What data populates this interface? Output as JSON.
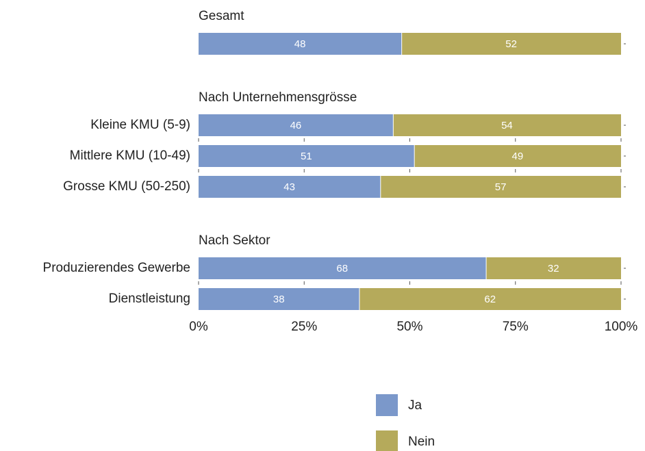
{
  "chart_data": {
    "type": "bar",
    "orientation": "horizontal",
    "stacked": true,
    "groups": [
      {
        "title": "Gesamt",
        "categories": [
          null
        ]
      },
      {
        "title": "Nach Unternehmensgrösse",
        "categories": [
          "Kleine KMU (5-9)",
          "Mittlere KMU (10-49)",
          "Grosse KMU (50-250)"
        ]
      },
      {
        "title": "Nach Sektor",
        "categories": [
          "Produzierendes Gewerbe",
          "Dienstleistung"
        ]
      }
    ],
    "series": [
      {
        "name": "Ja",
        "color": "#7b98ca",
        "values": [
          48,
          46,
          51,
          43,
          68,
          38
        ]
      },
      {
        "name": "Nein",
        "color": "#b5aa5b",
        "values": [
          52,
          54,
          49,
          57,
          32,
          62
        ]
      }
    ],
    "xlim": [
      0,
      100
    ],
    "xticks": [
      {
        "value": 0,
        "label": "0%"
      },
      {
        "value": 25,
        "label": "25%"
      },
      {
        "value": 50,
        "label": "50%"
      },
      {
        "value": 75,
        "label": "75%"
      },
      {
        "value": 100,
        "label": "100%"
      }
    ],
    "legend": "bottom"
  }
}
